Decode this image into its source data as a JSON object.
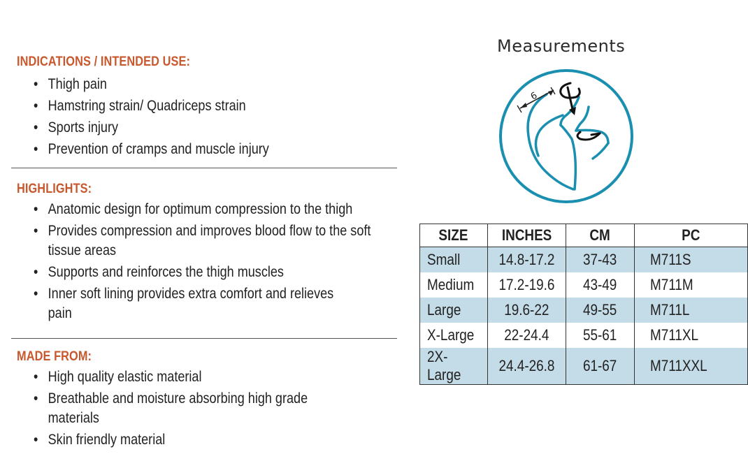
{
  "sections": {
    "indications": {
      "heading": "INDICATIONS / INTENDED USE:",
      "items": [
        "Thigh pain",
        "Hamstring strain/ Quadriceps strain",
        "Sports injury",
        "Prevention of cramps and muscle injury"
      ]
    },
    "highlights": {
      "heading": "HIGHLIGHTS:",
      "items": [
        "Anatomic design for optimum compression to the thigh",
        "Provides compression and improves blood flow to the soft tissue areas",
        "Supports and reinforces the thigh muscles",
        "Inner soft lining provides extra comfort and relieves pain"
      ]
    },
    "made_from": {
      "heading": "MADE FROM:",
      "items": [
        "High quality elastic material",
        "Breathable and moisture absorbing high grade materials",
        "Skin friendly material"
      ]
    }
  },
  "measurements": {
    "title": "Measurements",
    "diagram_label": "6",
    "diagram_icon": "thigh-measurement-icon",
    "accent_color": "#1a8fb0"
  },
  "size_table": {
    "headers": [
      "SIZE",
      "INCHES",
      "CM",
      "PC"
    ],
    "rows": [
      [
        "Small",
        "14.8-17.2",
        "37-43",
        "M711S"
      ],
      [
        "Medium",
        "17.2-19.6",
        "43-49",
        "M711M"
      ],
      [
        "Large",
        "19.6-22",
        "49-55",
        "M711L"
      ],
      [
        "X-Large",
        "22-24.4",
        "55-61",
        "M711XL"
      ],
      [
        "2X-Large",
        "24.4-26.8",
        "61-67",
        "M711XXL"
      ]
    ],
    "shade_color": "#c3dce8"
  },
  "colors": {
    "heading": "#c8582e",
    "text": "#222222"
  }
}
